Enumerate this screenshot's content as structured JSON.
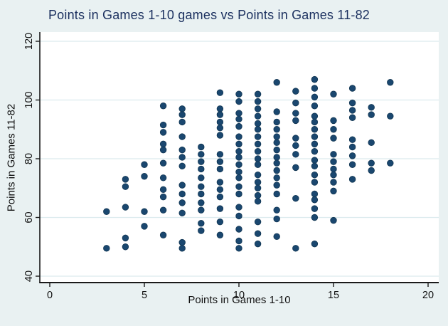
{
  "colors": {
    "figure_background": "#e9f1f2",
    "plot_background": "#ffffff",
    "gridline": "#dcebee",
    "axis_line": "#1a1a1a",
    "marker_fill": "#1a476f",
    "marker_edge": "#123652",
    "title_text": "#1a2f5e",
    "tick_text": "#111111"
  },
  "chart_data": {
    "type": "scatter",
    "title": "Points in Games 1-10 games vs Points in Games 11-82",
    "xlabel": "Points in Games 1-10",
    "ylabel": "Points in Games 11-82",
    "xlim": [
      0,
      20
    ],
    "ylim": [
      40,
      120
    ],
    "xticks": [
      0,
      5,
      10,
      15,
      20
    ],
    "yticks": [
      40,
      60,
      80,
      100,
      120
    ],
    "grid": "horizontal gridlines only",
    "legend": "none",
    "points": [
      [
        3,
        62
      ],
      [
        3,
        49.5
      ],
      [
        4,
        73
      ],
      [
        4,
        70.5
      ],
      [
        4,
        63.5
      ],
      [
        4,
        53
      ],
      [
        4,
        50
      ],
      [
        5,
        78
      ],
      [
        5,
        74
      ],
      [
        5,
        62
      ],
      [
        5,
        57
      ],
      [
        6,
        98
      ],
      [
        6,
        91.5
      ],
      [
        6,
        89
      ],
      [
        6,
        85
      ],
      [
        6,
        83
      ],
      [
        6,
        78.5
      ],
      [
        6,
        73.5
      ],
      [
        6,
        69.5
      ],
      [
        6,
        67
      ],
      [
        6,
        62.5
      ],
      [
        6,
        54
      ],
      [
        7,
        97
      ],
      [
        7,
        95
      ],
      [
        7,
        92.5
      ],
      [
        7,
        87.5
      ],
      [
        7,
        83
      ],
      [
        7,
        80.5
      ],
      [
        7,
        77.5
      ],
      [
        7,
        71
      ],
      [
        7,
        68
      ],
      [
        7,
        65
      ],
      [
        7,
        61.5
      ],
      [
        7,
        51.5
      ],
      [
        7,
        49.5
      ],
      [
        8,
        84
      ],
      [
        8,
        81.5
      ],
      [
        8,
        79
      ],
      [
        8,
        76.5
      ],
      [
        8,
        73.5
      ],
      [
        8,
        70.5
      ],
      [
        8,
        68
      ],
      [
        8,
        65
      ],
      [
        8,
        62.5
      ],
      [
        8,
        58
      ],
      [
        8,
        55.5
      ],
      [
        9,
        102.5
      ],
      [
        9,
        97
      ],
      [
        9,
        95
      ],
      [
        9,
        92.5
      ],
      [
        9,
        90.5
      ],
      [
        9,
        88
      ],
      [
        9,
        81.5
      ],
      [
        9,
        79
      ],
      [
        9,
        76.5
      ],
      [
        9,
        72
      ],
      [
        9,
        69.5
      ],
      [
        9,
        67
      ],
      [
        9,
        63
      ],
      [
        9,
        58.5
      ],
      [
        9,
        54
      ],
      [
        10,
        102
      ],
      [
        10,
        99.5
      ],
      [
        10,
        95.5
      ],
      [
        10,
        93.5
      ],
      [
        10,
        91
      ],
      [
        10,
        87.5
      ],
      [
        10,
        85
      ],
      [
        10,
        82.5
      ],
      [
        10,
        80.5
      ],
      [
        10,
        78
      ],
      [
        10,
        75.5
      ],
      [
        10,
        73.5
      ],
      [
        10,
        70.5
      ],
      [
        10,
        68
      ],
      [
        10,
        63.5
      ],
      [
        10,
        60.5
      ],
      [
        10,
        56
      ],
      [
        10,
        52
      ],
      [
        10,
        49.5
      ],
      [
        11,
        102
      ],
      [
        11,
        99.5
      ],
      [
        11,
        97
      ],
      [
        11,
        94.5
      ],
      [
        11,
        92
      ],
      [
        11,
        90
      ],
      [
        11,
        87.5
      ],
      [
        11,
        85
      ],
      [
        11,
        82.5
      ],
      [
        11,
        80
      ],
      [
        11,
        78
      ],
      [
        11,
        74.5
      ],
      [
        11,
        72
      ],
      [
        11,
        70
      ],
      [
        11,
        67.5
      ],
      [
        11,
        65.5
      ],
      [
        11,
        58.5
      ],
      [
        11,
        54.5
      ],
      [
        11,
        51
      ],
      [
        12,
        106
      ],
      [
        12,
        96
      ],
      [
        12,
        92.5
      ],
      [
        12,
        90
      ],
      [
        12,
        87.5
      ],
      [
        12,
        85.5
      ],
      [
        12,
        83
      ],
      [
        12,
        80.5
      ],
      [
        12,
        78.5
      ],
      [
        12,
        76
      ],
      [
        12,
        73.5
      ],
      [
        12,
        71
      ],
      [
        12,
        68
      ],
      [
        12,
        62.5
      ],
      [
        12,
        59.5
      ],
      [
        12,
        53.5
      ],
      [
        13,
        103
      ],
      [
        13,
        99
      ],
      [
        13,
        95.5
      ],
      [
        13,
        93
      ],
      [
        13,
        87
      ],
      [
        13,
        84.5
      ],
      [
        13,
        81.5
      ],
      [
        13,
        77
      ],
      [
        13,
        66.5
      ],
      [
        13,
        49.5
      ],
      [
        14,
        107
      ],
      [
        14,
        104
      ],
      [
        14,
        101
      ],
      [
        14,
        98
      ],
      [
        14,
        94.5
      ],
      [
        14,
        92.5
      ],
      [
        14,
        90
      ],
      [
        14,
        87.5
      ],
      [
        14,
        85
      ],
      [
        14,
        82.5
      ],
      [
        14,
        79.5
      ],
      [
        14,
        77.5
      ],
      [
        14,
        74.5
      ],
      [
        14,
        72
      ],
      [
        14,
        68
      ],
      [
        14,
        66
      ],
      [
        14,
        63
      ],
      [
        14,
        60
      ],
      [
        14,
        51
      ],
      [
        15,
        102
      ],
      [
        15,
        93
      ],
      [
        15,
        90
      ],
      [
        15,
        87
      ],
      [
        15,
        81.5
      ],
      [
        15,
        79
      ],
      [
        15,
        76.5
      ],
      [
        15,
        74.5
      ],
      [
        15,
        72
      ],
      [
        15,
        69
      ],
      [
        15,
        59
      ],
      [
        16,
        104
      ],
      [
        16,
        99
      ],
      [
        16,
        96.5
      ],
      [
        16,
        94
      ],
      [
        16,
        86.5
      ],
      [
        16,
        84
      ],
      [
        16,
        81
      ],
      [
        16,
        78
      ],
      [
        16,
        73
      ],
      [
        17,
        97.5
      ],
      [
        17,
        95
      ],
      [
        17,
        85.5
      ],
      [
        17,
        78.5
      ],
      [
        17,
        76
      ],
      [
        18,
        106
      ],
      [
        18,
        94.5
      ],
      [
        18,
        78.5
      ]
    ]
  }
}
